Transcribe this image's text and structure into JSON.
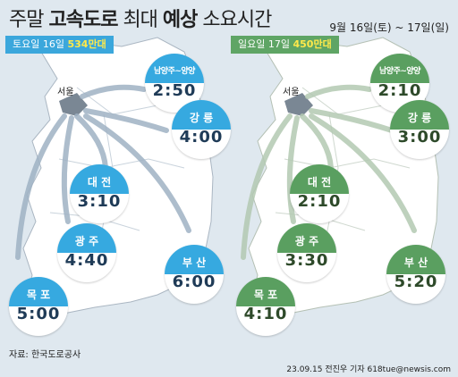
{
  "title": {
    "plain1": "주말 ",
    "bold1": "고속도로",
    "plain2": " 최대 ",
    "bold2": "예상",
    "plain3": " 소요시간"
  },
  "date_range": "9월 16일(토) ~ 17일(일)",
  "left": {
    "day": "토요일 16일",
    "volume": "534만대",
    "city_label": "서울",
    "destinations": [
      {
        "name": "남양주~양양",
        "time": "2:50"
      },
      {
        "name": "강 릉",
        "time": "4:00"
      },
      {
        "name": "대 전",
        "time": "3:10"
      },
      {
        "name": "광 주",
        "time": "4:40"
      },
      {
        "name": "부 산",
        "time": "6:00"
      },
      {
        "name": "목 포",
        "time": "5:00"
      }
    ]
  },
  "right": {
    "day": "일요일 17일",
    "volume": "450만대",
    "city_label": "서울",
    "destinations": [
      {
        "name": "남양주~양양",
        "time": "2:10"
      },
      {
        "name": "강 릉",
        "time": "3:00"
      },
      {
        "name": "대 전",
        "time": "2:10"
      },
      {
        "name": "광 주",
        "time": "3:30"
      },
      {
        "name": "부 산",
        "time": "5:20"
      },
      {
        "name": "목 포",
        "time": "4:10"
      }
    ]
  },
  "source": "자료: 한국도로공사",
  "credit": "23.09.15 전진우 기자 618tue@newsis.com",
  "colors": {
    "left_accent": "#36a9e0",
    "right_accent": "#5a9f60",
    "highlight": "#ffe94a"
  }
}
